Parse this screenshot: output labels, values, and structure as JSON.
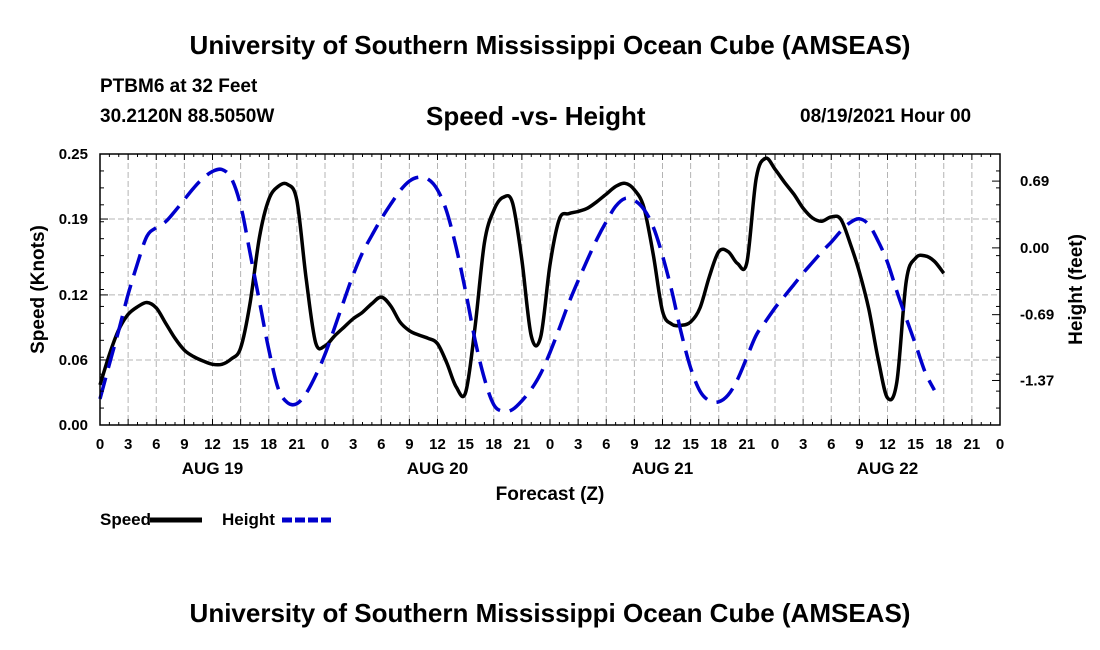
{
  "header": {
    "title": "University of Southern Mississippi Ocean Cube (AMSEAS)",
    "station": "PTBM6 at 32 Feet",
    "coords": "30.2120N  88.5050W",
    "chart_title": "Speed -vs- Height",
    "datetime": "08/19/2021 Hour 00"
  },
  "footer": {
    "title": "University of Southern Mississippi Ocean Cube (AMSEAS)"
  },
  "colors": {
    "speed": "#000000",
    "height": "#0000cc",
    "grid": "#b4b4b4"
  },
  "chart_data": {
    "type": "line",
    "title": "Speed -vs- Height",
    "xlabel": "Forecast (Z)",
    "ylabel_left": "Speed (Knots)",
    "ylabel_right": "Height (feet)",
    "x_range": [
      0,
      96
    ],
    "x_tick_labels": [
      "0",
      "3",
      "6",
      "9",
      "12",
      "15",
      "18",
      "21",
      "0",
      "3",
      "6",
      "9",
      "12",
      "15",
      "18",
      "21",
      "0",
      "3",
      "6",
      "9",
      "12",
      "15",
      "18",
      "21",
      "0",
      "3",
      "6",
      "9",
      "12",
      "15",
      "18",
      "21",
      "0"
    ],
    "date_labels": [
      {
        "label": "AUG 19",
        "hour": 12
      },
      {
        "label": "AUG 20",
        "hour": 36
      },
      {
        "label": "AUG 21",
        "hour": 60
      },
      {
        "label": "AUG 22",
        "hour": 84
      }
    ],
    "ylim_left": [
      0,
      0.25
    ],
    "y_ticks_left": [
      0.0,
      0.06,
      0.12,
      0.19,
      0.25
    ],
    "y_tick_labels_left": [
      "0.00",
      "0.06",
      "0.12",
      "0.19",
      "0.25"
    ],
    "ylim_right": [
      -1.83,
      0.97
    ],
    "y_ticks_right": [
      0.69,
      0.0,
      -0.69,
      -1.37
    ],
    "y_tick_labels_right": [
      "0.69",
      "0.00",
      "-0.69",
      "-1.37"
    ],
    "legend": [
      {
        "name": "Speed",
        "style": "solid",
        "color": "#000000"
      },
      {
        "name": "Height",
        "style": "dashed",
        "color": "#0000cc"
      }
    ],
    "series": [
      {
        "name": "Speed",
        "axis": "left",
        "points": [
          [
            0,
            0.037
          ],
          [
            1,
            0.065
          ],
          [
            2,
            0.088
          ],
          [
            3,
            0.102
          ],
          [
            4,
            0.109
          ],
          [
            5,
            0.113
          ],
          [
            6,
            0.108
          ],
          [
            7,
            0.094
          ],
          [
            8,
            0.08
          ],
          [
            9,
            0.069
          ],
          [
            10,
            0.063
          ],
          [
            11,
            0.059
          ],
          [
            12,
            0.056
          ],
          [
            13,
            0.056
          ],
          [
            14,
            0.061
          ],
          [
            15,
            0.071
          ],
          [
            16,
            0.112
          ],
          [
            17,
            0.173
          ],
          [
            18,
            0.208
          ],
          [
            19,
            0.22
          ],
          [
            20,
            0.222
          ],
          [
            21,
            0.207
          ],
          [
            22,
            0.134
          ],
          [
            23,
            0.076
          ],
          [
            24,
            0.073
          ],
          [
            25,
            0.082
          ],
          [
            26,
            0.09
          ],
          [
            27,
            0.098
          ],
          [
            28,
            0.104
          ],
          [
            29,
            0.112
          ],
          [
            30,
            0.118
          ],
          [
            31,
            0.11
          ],
          [
            32,
            0.095
          ],
          [
            33,
            0.087
          ],
          [
            34,
            0.083
          ],
          [
            35,
            0.08
          ],
          [
            36,
            0.075
          ],
          [
            37,
            0.057
          ],
          [
            38,
            0.035
          ],
          [
            39,
            0.03
          ],
          [
            40,
            0.09
          ],
          [
            41,
            0.168
          ],
          [
            42,
            0.198
          ],
          [
            43,
            0.21
          ],
          [
            44,
            0.205
          ],
          [
            45,
            0.152
          ],
          [
            46,
            0.082
          ],
          [
            47,
            0.081
          ],
          [
            48,
            0.148
          ],
          [
            49,
            0.19
          ],
          [
            50,
            0.195
          ],
          [
            51,
            0.197
          ],
          [
            52,
            0.2
          ],
          [
            53,
            0.206
          ],
          [
            54,
            0.213
          ],
          [
            55,
            0.22
          ],
          [
            56,
            0.223
          ],
          [
            57,
            0.217
          ],
          [
            58,
            0.201
          ],
          [
            59,
            0.158
          ],
          [
            60,
            0.105
          ],
          [
            61,
            0.093
          ],
          [
            62,
            0.092
          ],
          [
            63,
            0.095
          ],
          [
            64,
            0.108
          ],
          [
            65,
            0.137
          ],
          [
            66,
            0.16
          ],
          [
            67,
            0.16
          ],
          [
            68,
            0.149
          ],
          [
            69,
            0.15
          ],
          [
            70,
            0.228
          ],
          [
            71,
            0.246
          ],
          [
            72,
            0.236
          ],
          [
            73,
            0.224
          ],
          [
            74,
            0.213
          ],
          [
            75,
            0.2
          ],
          [
            76,
            0.191
          ],
          [
            77,
            0.188
          ],
          [
            78,
            0.192
          ],
          [
            79,
            0.19
          ],
          [
            80,
            0.168
          ],
          [
            81,
            0.141
          ],
          [
            82,
            0.107
          ],
          [
            83,
            0.061
          ],
          [
            84,
            0.025
          ],
          [
            85,
            0.04
          ],
          [
            86,
            0.133
          ],
          [
            87,
            0.154
          ],
          [
            88,
            0.156
          ],
          [
            89,
            0.151
          ],
          [
            90,
            0.14
          ]
        ]
      },
      {
        "name": "Height",
        "axis": "right",
        "points": [
          [
            0,
            -1.56
          ],
          [
            1,
            -1.2
          ],
          [
            2,
            -0.85
          ],
          [
            3,
            -0.48
          ],
          [
            4,
            -0.16
          ],
          [
            5,
            0.12
          ],
          [
            6,
            0.21
          ],
          [
            7,
            0.27
          ],
          [
            8,
            0.38
          ],
          [
            9,
            0.5
          ],
          [
            10,
            0.62
          ],
          [
            11,
            0.72
          ],
          [
            12,
            0.79
          ],
          [
            13,
            0.81
          ],
          [
            14,
            0.72
          ],
          [
            15,
            0.44
          ],
          [
            16,
            -0.05
          ],
          [
            17,
            -0.55
          ],
          [
            18,
            -1.05
          ],
          [
            19,
            -1.45
          ],
          [
            20,
            -1.6
          ],
          [
            21,
            -1.61
          ],
          [
            22,
            -1.5
          ],
          [
            23,
            -1.32
          ],
          [
            24,
            -1.1
          ],
          [
            25,
            -0.83
          ],
          [
            26,
            -0.55
          ],
          [
            27,
            -0.28
          ],
          [
            28,
            -0.05
          ],
          [
            29,
            0.13
          ],
          [
            30,
            0.3
          ],
          [
            31,
            0.45
          ],
          [
            32,
            0.59
          ],
          [
            33,
            0.69
          ],
          [
            34,
            0.73
          ],
          [
            35,
            0.71
          ],
          [
            36,
            0.6
          ],
          [
            37,
            0.37
          ],
          [
            38,
            0.0
          ],
          [
            39,
            -0.45
          ],
          [
            40,
            -0.95
          ],
          [
            41,
            -1.35
          ],
          [
            42,
            -1.62
          ],
          [
            43,
            -1.69
          ],
          [
            44,
            -1.67
          ],
          [
            45,
            -1.58
          ],
          [
            46,
            -1.46
          ],
          [
            47,
            -1.3
          ],
          [
            48,
            -1.08
          ],
          [
            49,
            -0.83
          ],
          [
            50,
            -0.57
          ],
          [
            51,
            -0.34
          ],
          [
            52,
            -0.12
          ],
          [
            53,
            0.09
          ],
          [
            54,
            0.27
          ],
          [
            55,
            0.43
          ],
          [
            56,
            0.51
          ],
          [
            57,
            0.49
          ],
          [
            58,
            0.4
          ],
          [
            59,
            0.22
          ],
          [
            60,
            -0.08
          ],
          [
            61,
            -0.45
          ],
          [
            62,
            -0.88
          ],
          [
            63,
            -1.24
          ],
          [
            64,
            -1.48
          ],
          [
            65,
            -1.58
          ],
          [
            66,
            -1.59
          ],
          [
            67,
            -1.52
          ],
          [
            68,
            -1.36
          ],
          [
            69,
            -1.13
          ],
          [
            70,
            -0.9
          ],
          [
            71,
            -0.76
          ],
          [
            72,
            -0.62
          ],
          [
            73,
            -0.5
          ],
          [
            74,
            -0.38
          ],
          [
            75,
            -0.26
          ],
          [
            76,
            -0.15
          ],
          [
            77,
            -0.04
          ],
          [
            78,
            0.06
          ],
          [
            79,
            0.17
          ],
          [
            80,
            0.26
          ],
          [
            81,
            0.3
          ],
          [
            82,
            0.24
          ],
          [
            83,
            0.07
          ],
          [
            84,
            -0.15
          ],
          [
            85,
            -0.45
          ],
          [
            86,
            -0.73
          ],
          [
            87,
            -1.0
          ],
          [
            88,
            -1.28
          ],
          [
            89,
            -1.47
          ]
        ]
      }
    ]
  }
}
